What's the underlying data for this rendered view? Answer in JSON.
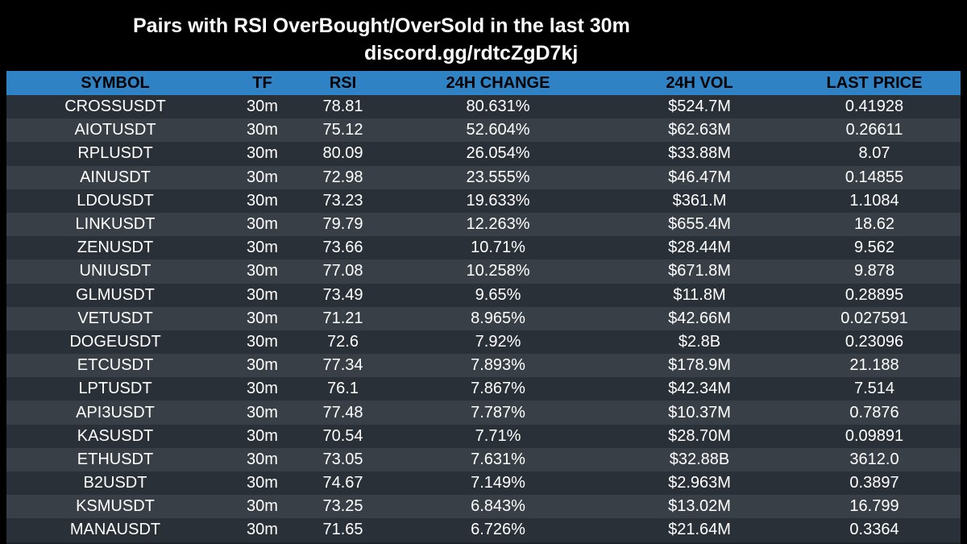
{
  "header": {
    "title": "Pairs with RSI OverBought/OverSold in the last 30m",
    "subtitle": "discord.gg/rdtcZgD7kj"
  },
  "colors": {
    "background": "#000000",
    "header_row": "#2f82c4",
    "row_a": "#2a3038",
    "row_b": "#383f47"
  },
  "table": {
    "columns": [
      "SYMBOL",
      "TF",
      "RSI",
      "24H CHANGE",
      "24H VOL",
      "LAST PRICE"
    ],
    "rows": [
      [
        "CROSSUSDT",
        "30m",
        "78.81",
        "80.631%",
        "$524.7M",
        "0.41928"
      ],
      [
        "AIOTUSDT",
        "30m",
        "75.12",
        "52.604%",
        "$62.63M",
        "0.26611"
      ],
      [
        "RPLUSDT",
        "30m",
        "80.09",
        "26.054%",
        "$33.88M",
        "8.07"
      ],
      [
        "AINUSDT",
        "30m",
        "72.98",
        "23.555%",
        "$46.47M",
        "0.14855"
      ],
      [
        "LDOUSDT",
        "30m",
        "73.23",
        "19.633%",
        "$361.M",
        "1.1084"
      ],
      [
        "LINKUSDT",
        "30m",
        "79.79",
        "12.263%",
        "$655.4M",
        "18.62"
      ],
      [
        "ZENUSDT",
        "30m",
        "73.66",
        "10.71%",
        "$28.44M",
        "9.562"
      ],
      [
        "UNIUSDT",
        "30m",
        "77.08",
        "10.258%",
        "$671.8M",
        "9.878"
      ],
      [
        "GLMUSDT",
        "30m",
        "73.49",
        "9.65%",
        "$11.8M",
        "0.28895"
      ],
      [
        "VETUSDT",
        "30m",
        "71.21",
        "8.965%",
        "$42.66M",
        "0.027591"
      ],
      [
        "DOGEUSDT",
        "30m",
        "72.6",
        "7.92%",
        "$2.8B",
        "0.23096"
      ],
      [
        "ETCUSDT",
        "30m",
        "77.34",
        "7.893%",
        "$178.9M",
        "21.188"
      ],
      [
        "LPTUSDT",
        "30m",
        "76.1",
        "7.867%",
        "$42.34M",
        "7.514"
      ],
      [
        "API3USDT",
        "30m",
        "77.48",
        "7.787%",
        "$10.37M",
        "0.7876"
      ],
      [
        "KASUSDT",
        "30m",
        "70.54",
        "7.71%",
        "$28.70M",
        "0.09891"
      ],
      [
        "ETHUSDT",
        "30m",
        "73.05",
        "7.631%",
        "$32.88B",
        "3612.0"
      ],
      [
        "B2USDT",
        "30m",
        "74.67",
        "7.149%",
        "$2.963M",
        "0.3897"
      ],
      [
        "KSMUSDT",
        "30m",
        "73.25",
        "6.843%",
        "$13.02M",
        "16.799"
      ],
      [
        "MANAUSDT",
        "30m",
        "71.65",
        "6.726%",
        "$21.64M",
        "0.3364"
      ]
    ]
  }
}
